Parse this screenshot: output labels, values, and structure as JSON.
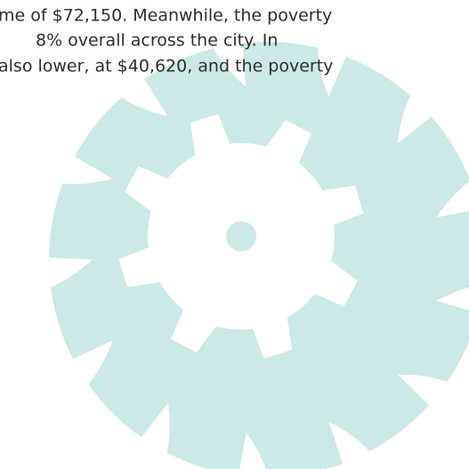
{
  "text": {
    "lines": [
      "me of $72,150. Meanwhile, the poverty",
      "8% overall across the city. In",
      "also lower, at $40,620, and the poverty"
    ]
  }
}
